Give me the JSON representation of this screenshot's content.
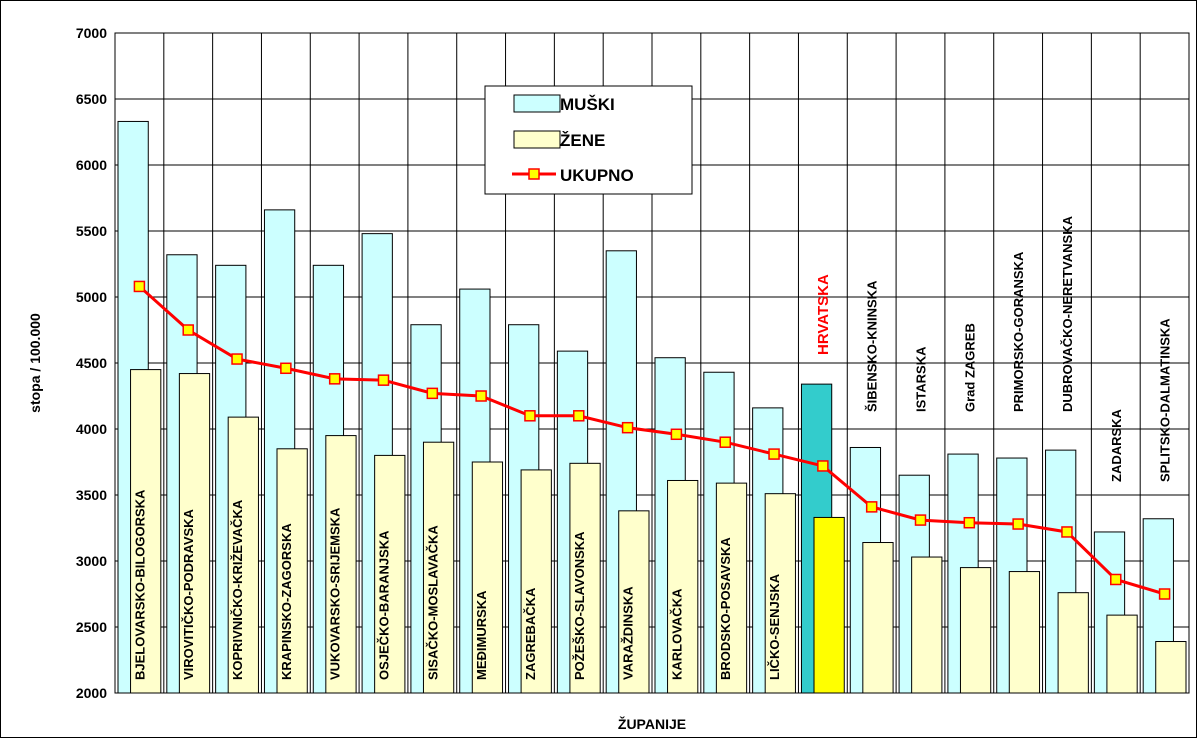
{
  "chart_data": {
    "type": "bar",
    "title": "",
    "xlabel": "ŽUPANIJE",
    "ylabel": "stopa / 100.000",
    "ylim": [
      2000,
      7000
    ],
    "yticks": [
      2000,
      2500,
      3000,
      3500,
      4000,
      4500,
      5000,
      5500,
      6000,
      6500,
      7000
    ],
    "grid": true,
    "legend_position": "top-center",
    "categories": [
      "BJELOVARSKO-BILOGORSKA",
      "VIROVITIČKO-PODRAVSKA",
      "KOPRIVNIČKO-KRIŽEVAČKA",
      "KRAPINSKO-ZAGORSKA",
      "VUKOVARSKO-SRIJEMSKA",
      "OSJEČKO-BARANJSKA",
      "SISAČKO-MOSLAVAČKA",
      "MEĐIMURSKA",
      "ZAGREBAČKA",
      "POŽEŠKO-SLAVONSKA",
      "VARAŽDINSKA",
      "KARLOVAČKA",
      "BRODSKO-POSAVSKA",
      "LIČKO-SENJSKA",
      "HRVATSKA",
      "ŠIBENSKO-KNINSKA",
      "ISTARSKA",
      "Grad ZAGREB",
      "PRIMORSKO-GORANSKA",
      "DUBROVAČKO-NERETVANSKA",
      "ZADARSKA",
      "SPLITSKO-DALMATINSKA"
    ],
    "highlight_category": "HRVATSKA",
    "series": [
      {
        "name": "MUŠKI",
        "type": "bar",
        "color": "#ccffff",
        "highlight_color": "#33cccc",
        "values": [
          6330,
          5320,
          5240,
          5660,
          5240,
          5480,
          4790,
          5060,
          4790,
          4590,
          5350,
          4540,
          4430,
          4160,
          4340,
          3860,
          3650,
          3810,
          3780,
          3840,
          3220,
          3320
        ]
      },
      {
        "name": "ŽENE",
        "type": "bar",
        "color": "#ffffcc",
        "highlight_color": "#ffff00",
        "values": [
          4450,
          4420,
          4090,
          3850,
          3950,
          3800,
          3900,
          3750,
          3690,
          3740,
          3380,
          3610,
          3590,
          3510,
          3330,
          3140,
          3030,
          2950,
          2920,
          2760,
          2590,
          2390
        ]
      },
      {
        "name": "UKUPNO",
        "type": "line",
        "color": "#ff0000",
        "marker_color": "#ffff00",
        "values": [
          5080,
          4750,
          4530,
          4460,
          4380,
          4370,
          4270,
          4250,
          4100,
          4100,
          4010,
          3960,
          3900,
          3810,
          3720,
          3410,
          3310,
          3290,
          3280,
          3220,
          2860,
          2750
        ]
      }
    ]
  }
}
